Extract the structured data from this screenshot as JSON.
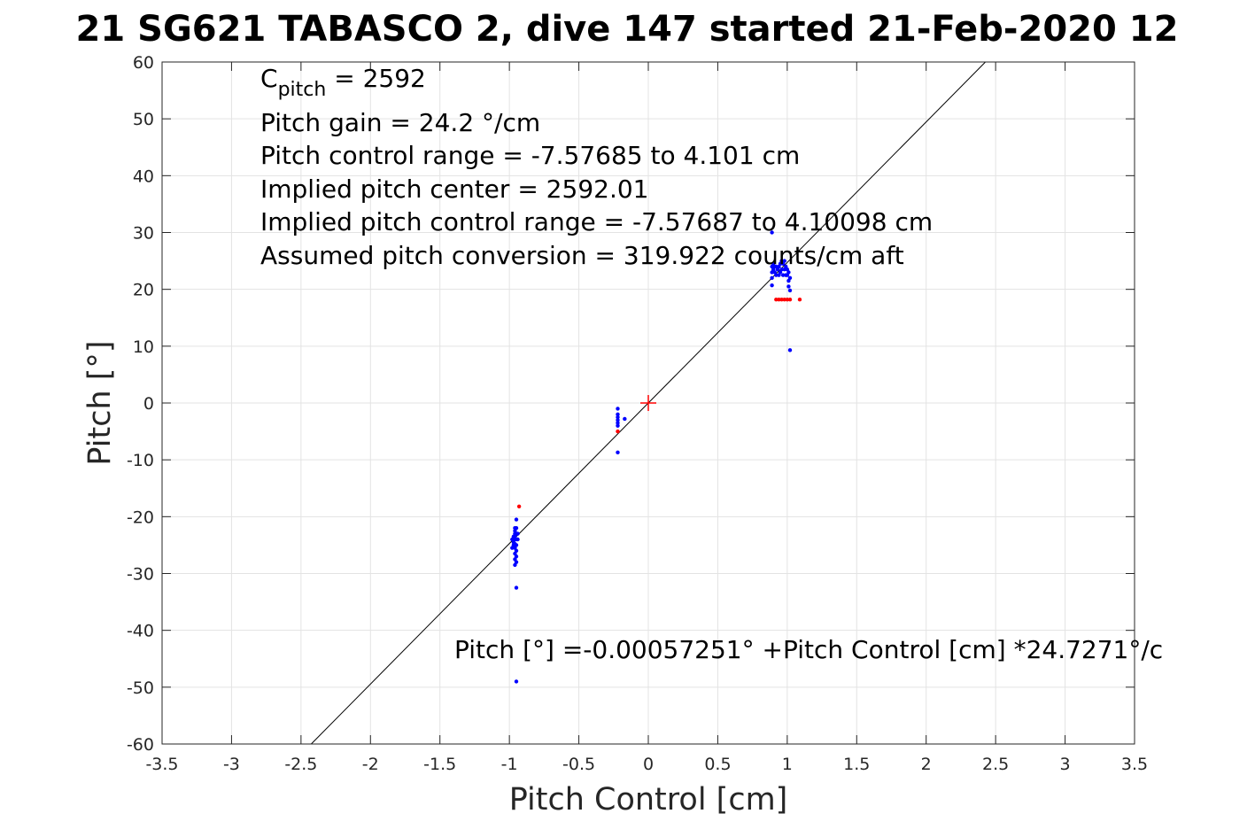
{
  "chart_data": {
    "type": "scatter",
    "title": "21 SG621 TABASCO 2, dive 147 started 21-Feb-2020 12",
    "xlabel": "Pitch Control [cm]",
    "ylabel": "Pitch [°]",
    "xlim": [
      -3.5,
      3.5
    ],
    "ylim": [
      -60,
      60
    ],
    "xticks": [
      "-3.5",
      "-3",
      "-2.5",
      "-2",
      "-1.5",
      "-1",
      "-0.5",
      "0",
      "0.5",
      "1",
      "1.5",
      "2",
      "2.5",
      "3",
      "3.5"
    ],
    "yticks": [
      "60",
      "50",
      "40",
      "30",
      "20",
      "10",
      "0",
      "-10",
      "-20",
      "-30",
      "-40",
      "-50",
      "-60"
    ],
    "grid": true,
    "annotations": {
      "c_pitch_main": "C",
      "c_pitch_sub": "pitch",
      "c_pitch_rest": " = 2592",
      "lines": [
        "Pitch gain = 24.2 °/cm",
        "Pitch control range = -7.57685 to 4.101 cm",
        "Implied pitch center = 2592.01",
        "Implied pitch control range = -7.57687 to 4.10098 cm",
        "Assumed pitch conversion = 319.922 counts/cm aft"
      ],
      "fit_equation": "Pitch [°] =-0.00057251° +Pitch Control [cm] *24.7271°/c"
    },
    "fit_line": {
      "intercept": -0.00057251,
      "slope": 24.7271,
      "color": "#000000"
    },
    "center_marker": {
      "x": 0,
      "y": 0,
      "color": "#ff0000"
    },
    "series": [
      {
        "color": "#0000ff",
        "points": [
          [
            -0.97,
            -23.5
          ],
          [
            -0.97,
            -24
          ],
          [
            -0.97,
            -24.5
          ],
          [
            -0.97,
            -25
          ],
          [
            -0.96,
            -23
          ],
          [
            -0.96,
            -23.5
          ],
          [
            -0.96,
            -24
          ],
          [
            -0.96,
            -24.8
          ],
          [
            -0.96,
            -25.5
          ],
          [
            -0.96,
            -26.5
          ],
          [
            -0.96,
            -27.5
          ],
          [
            -0.96,
            -28.5
          ],
          [
            -0.96,
            -22.5
          ],
          [
            -0.95,
            -22
          ],
          [
            -0.95,
            -23
          ],
          [
            -0.95,
            -24
          ],
          [
            -0.95,
            -25
          ],
          [
            -0.95,
            -26
          ],
          [
            -0.95,
            -27
          ],
          [
            -0.95,
            -28
          ],
          [
            -0.95,
            -20.5
          ],
          [
            -0.95,
            -32.5
          ],
          [
            -0.95,
            -49
          ],
          [
            -0.94,
            -23
          ],
          [
            -0.94,
            -24
          ],
          [
            -0.98,
            -24
          ],
          [
            -0.98,
            -25.5
          ],
          [
            -0.96,
            -22
          ],
          [
            -0.22,
            -1
          ],
          [
            -0.22,
            -2
          ],
          [
            -0.22,
            -2.5
          ],
          [
            -0.22,
            -3
          ],
          [
            -0.22,
            -3.5
          ],
          [
            -0.22,
            -4
          ],
          [
            -0.22,
            -8.7
          ],
          [
            -0.17,
            -2.8
          ],
          [
            0.89,
            30
          ],
          [
            0.89,
            24
          ],
          [
            0.89,
            23
          ],
          [
            0.89,
            22
          ],
          [
            0.89,
            20.7
          ],
          [
            0.9,
            24.5
          ],
          [
            0.9,
            23.5
          ],
          [
            0.91,
            24
          ],
          [
            0.91,
            23
          ],
          [
            0.92,
            24
          ],
          [
            0.92,
            22.5
          ],
          [
            0.93,
            23.5
          ],
          [
            0.94,
            24
          ],
          [
            0.94,
            22.5
          ],
          [
            0.95,
            24.5
          ],
          [
            0.95,
            23
          ],
          [
            0.96,
            25
          ],
          [
            0.96,
            23.5
          ],
          [
            0.97,
            24.5
          ],
          [
            0.97,
            22.5
          ],
          [
            0.98,
            25
          ],
          [
            0.98,
            23.5
          ],
          [
            0.99,
            24
          ],
          [
            0.99,
            22.5
          ],
          [
            1.0,
            23.5
          ],
          [
            1.0,
            22.5
          ],
          [
            1.01,
            23
          ],
          [
            1.01,
            21.5
          ],
          [
            1.01,
            20.5
          ],
          [
            1.02,
            19.8
          ],
          [
            1.02,
            22
          ],
          [
            1.02,
            9.3
          ]
        ]
      },
      {
        "color": "#ff0000",
        "points": [
          [
            -0.93,
            -18.2
          ],
          [
            -0.22,
            -5
          ],
          [
            0.92,
            18.2
          ],
          [
            0.94,
            18.2
          ],
          [
            0.96,
            18.2
          ],
          [
            0.98,
            18.2
          ],
          [
            1.0,
            18.2
          ],
          [
            1.02,
            18.2
          ],
          [
            1.09,
            18.2
          ]
        ]
      }
    ]
  }
}
